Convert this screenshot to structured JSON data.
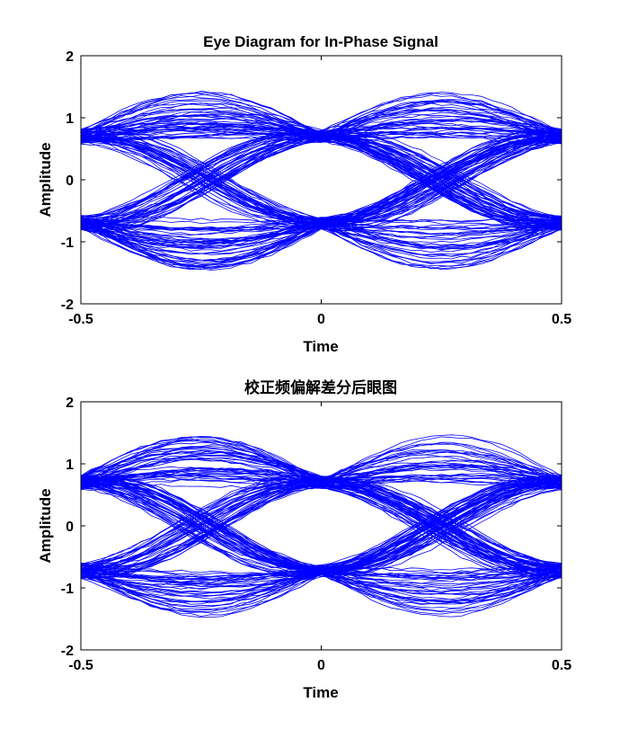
{
  "colors": {
    "trace": "#0000ff",
    "axis": "#000000",
    "background": "#ffffff"
  },
  "chart_data": [
    {
      "type": "line",
      "title": "Eye Diagram for In-Phase Signal",
      "xlabel": "Time",
      "ylabel": "Amplitude",
      "xlim": [
        -0.5,
        0.5
      ],
      "ylim": [
        -2,
        2
      ],
      "xticks": [
        -0.5,
        0,
        0.5
      ],
      "xtick_labels": [
        "-0.5",
        "0",
        "0.5"
      ],
      "yticks": [
        -2,
        -1,
        0,
        1,
        2
      ],
      "ytick_labels": [
        "-2",
        "-1",
        "0",
        "1",
        "2"
      ],
      "grid": false,
      "series_description": {
        "signal_levels": [
          -0.7,
          0.7
        ],
        "eye_crossings_x": [
          -0.5,
          0,
          0.5
        ],
        "peak_amplitude_range": [
          -1.45,
          1.55
        ]
      }
    },
    {
      "type": "line",
      "title": "校正频偏解差分后眼图",
      "xlabel": "Time",
      "ylabel": "Amplitude",
      "xlim": [
        -0.5,
        0.5
      ],
      "ylim": [
        -2,
        2
      ],
      "xticks": [
        -0.5,
        0,
        0.5
      ],
      "xtick_labels": [
        "-0.5",
        "0",
        "0.5"
      ],
      "yticks": [
        -2,
        -1,
        0,
        1,
        2
      ],
      "ytick_labels": [
        "-2",
        "-1",
        "0",
        "1",
        "2"
      ],
      "grid": false,
      "series_description": {
        "signal_levels": [
          -0.72,
          0.7
        ],
        "eye_crossings_x": [
          -0.5,
          0,
          0.5
        ],
        "peak_amplitude_range": [
          -1.4,
          1.45
        ]
      }
    }
  ]
}
